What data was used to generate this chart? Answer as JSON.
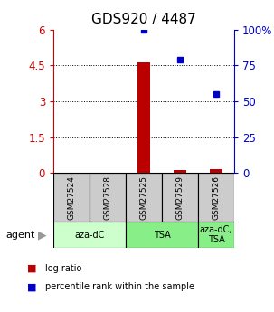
{
  "title": "GDS920 / 4487",
  "samples": [
    "GSM27524",
    "GSM27528",
    "GSM27525",
    "GSM27529",
    "GSM27526"
  ],
  "log_ratio": [
    0.0,
    0.0,
    4.62,
    0.12,
    0.18
  ],
  "percentile_rank": [
    null,
    null,
    100.0,
    79.0,
    55.0
  ],
  "ylim_left": [
    0,
    6
  ],
  "ylim_right": [
    0,
    100
  ],
  "yticks_left": [
    0,
    1.5,
    3.0,
    4.5,
    6
  ],
  "ytick_labels_left": [
    "0",
    "1.5",
    "3",
    "4.5",
    "6"
  ],
  "yticks_right": [
    0,
    25,
    50,
    75,
    100
  ],
  "ytick_labels_right": [
    "0",
    "25",
    "50",
    "75",
    "100%"
  ],
  "hlines": [
    1.5,
    3.0,
    4.5
  ],
  "bar_color": "#bb0000",
  "dot_color": "#0000cc",
  "agent_groups": [
    {
      "label": "aza-dC",
      "start": 0,
      "end": 2,
      "color": "#ccffcc"
    },
    {
      "label": "TSA",
      "start": 2,
      "end": 4,
      "color": "#88ee88"
    },
    {
      "label": "aza-dC,\nTSA",
      "start": 4,
      "end": 5,
      "color": "#88ee88"
    }
  ],
  "agent_label": "agent",
  "legend_items": [
    {
      "color": "#bb0000",
      "label": "log ratio"
    },
    {
      "color": "#0000cc",
      "label": "percentile rank within the sample"
    }
  ],
  "title_fontsize": 11,
  "tick_fontsize": 8.5,
  "label_fontsize": 7,
  "left_axis_color": "#cc0000",
  "right_axis_color": "#0000cc",
  "sample_box_color": "#cccccc",
  "fig_bg": "#ffffff",
  "bar_width": 0.35,
  "n_samples": 5,
  "xlim": [
    -0.5,
    4.5
  ]
}
